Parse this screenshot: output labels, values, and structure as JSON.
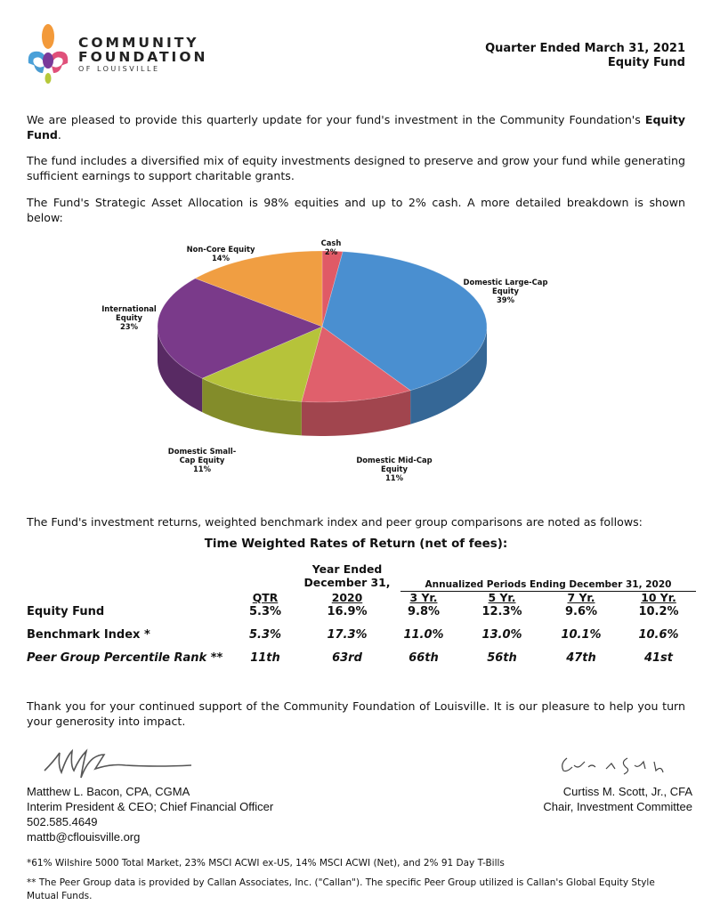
{
  "header": {
    "logo": {
      "line1": "COMMUNITY",
      "line2": "FOUNDATION",
      "line3": "OF LOUISVILLE"
    },
    "quarter": "Quarter Ended March 31, 2021",
    "fund": "Equity Fund"
  },
  "intro": {
    "p1_text": "We are pleased to provide this quarterly update for your fund's investment in the Community Foundation's ",
    "p1_bold": "Equity Fund",
    "p1_end": ".",
    "p2": "The fund includes a diversified mix of equity investments designed to preserve and grow your fund while generating sufficient earnings to support charitable grants.",
    "p3": "The Fund's Strategic Asset Allocation is 98% equities and up to 2% cash. A more detailed breakdown is shown below:"
  },
  "chart_data": {
    "type": "pie",
    "title": "",
    "categories": [
      "Cash",
      "Domestic Large-Cap Equity",
      "Domestic Mid-Cap Equity",
      "Domestic Small-Cap Equity",
      "International Equity",
      "Non-Core Equity"
    ],
    "values": [
      2,
      39,
      11,
      11,
      23,
      14
    ],
    "labels": [
      {
        "name": "Cash",
        "pct": "2%"
      },
      {
        "name": "Domestic Large-Cap Equity",
        "pct": "39%"
      },
      {
        "name": "Domestic Mid-Cap Equity",
        "pct": "11%"
      },
      {
        "name": "Domestic Small-Cap Equity",
        "pct": "11%"
      },
      {
        "name": "International Equity",
        "pct": "23%"
      },
      {
        "name": "Non-Core Equity",
        "pct": "14%"
      }
    ],
    "colors": [
      "#e05a66",
      "#4a8fd0",
      "#e0606c",
      "#b6c33a",
      "#7a3a8a",
      "#f09e42"
    ],
    "style": "3d"
  },
  "returns": {
    "intro": "The Fund's investment returns, weighted benchmark index and peer group comparisons are noted as follows:",
    "title": "Time Weighted Rates of Return (net of fees):",
    "year_ended": "Year Ended",
    "dec31": "December 31,",
    "annualized": "Annualized Periods Ending December 31, 2020",
    "columns": [
      "QTR",
      "2020",
      "3 Yr.",
      "5 Yr.",
      "7 Yr.",
      "10 Yr."
    ],
    "rows": [
      {
        "label": "Equity Fund",
        "values": [
          "5.3%",
          "16.9%",
          "9.8%",
          "12.3%",
          "9.6%",
          "10.2%"
        ]
      },
      {
        "label": "Benchmark Index *",
        "values": [
          "5.3%",
          "17.3%",
          "11.0%",
          "13.0%",
          "10.1%",
          "10.6%"
        ]
      },
      {
        "label": "Peer Group Percentile Rank **",
        "values": [
          "11th",
          "63rd",
          "66th",
          "56th",
          "47th",
          "41st"
        ]
      }
    ]
  },
  "closing": "Thank you for your continued support of the Community Foundation of Louisville.  It is our pleasure to help you turn your generosity into impact.",
  "signers": {
    "left": {
      "name": "Matthew L. Bacon, CPA, CGMA",
      "title": "Interim President & CEO; Chief Financial Officer",
      "phone": "502.585.4649",
      "email": "mattb@cflouisville.org"
    },
    "right": {
      "name": "Curtiss M. Scott, Jr., CFA",
      "title": "Chair, Investment Committee"
    }
  },
  "footnotes": {
    "f1": "*61% Wilshire 5000 Total Market, 23% MSCI ACWI ex-US, 14% MSCI ACWI (Net), and 2% 91 Day T-Bills",
    "f2": "** The Peer Group data is provided by Callan Associates, Inc. (\"Callan\").  The specific Peer Group utilized is Callan's Global Equity Style Mutual Funds."
  }
}
